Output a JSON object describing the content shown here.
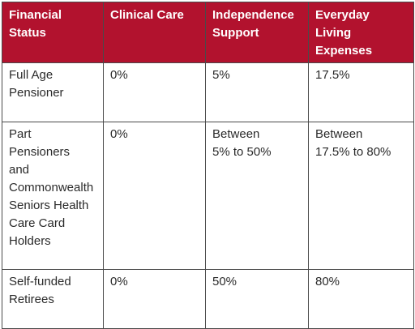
{
  "table": {
    "headers": [
      [
        "Financial",
        "Status"
      ],
      [
        "Clinical Care"
      ],
      [
        "Independence",
        "Support"
      ],
      [
        "Everyday",
        "Living",
        "Expenses"
      ]
    ],
    "rows": [
      [
        [
          "Full Age",
          "Pensioner"
        ],
        [
          "0%"
        ],
        [
          "5%"
        ],
        [
          "17.5%"
        ]
      ],
      [
        [
          "Part",
          "Pensioners",
          "and",
          "Commonwealth",
          "Seniors Health",
          "Care Card",
          "Holders"
        ],
        [
          "0%"
        ],
        [
          "Between",
          "5% to 50%"
        ],
        [
          "Between",
          "17.5% to 80%"
        ]
      ],
      [
        [
          "Self-funded",
          "Retirees"
        ],
        [
          "0%"
        ],
        [
          "50%"
        ],
        [
          "80%"
        ]
      ]
    ]
  },
  "colors": {
    "header_background": "#b2122e",
    "header_text": "#ffffff",
    "body_text": "#2a2a2a",
    "border": "#4a4a4a"
  }
}
